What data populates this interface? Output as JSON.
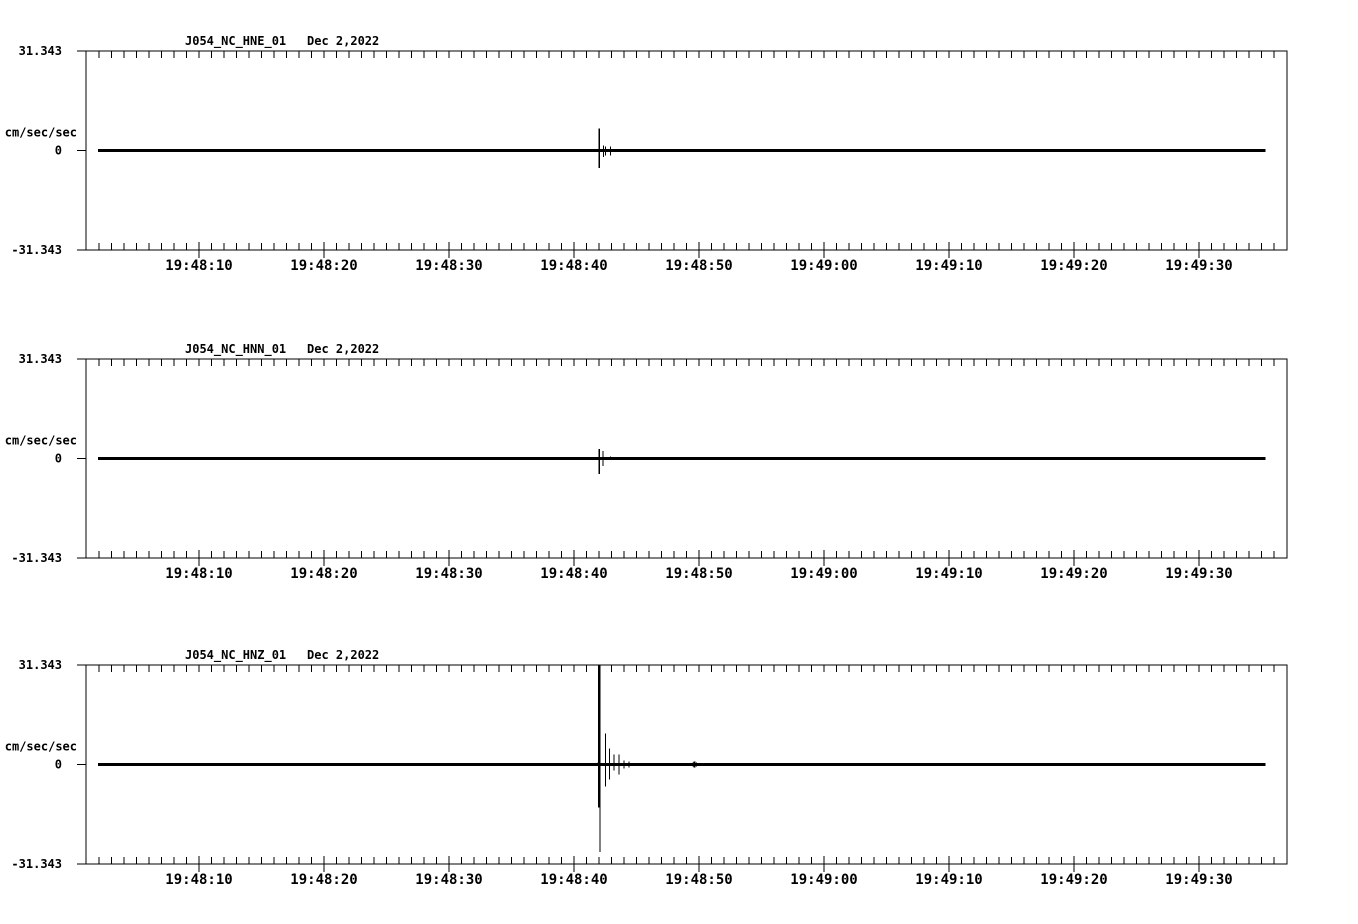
{
  "page": {
    "background_color": "#ffffff",
    "foreground_color": "#000000",
    "description": "Three-channel strong-motion seismogram display"
  },
  "chart_data": [
    {
      "type": "line",
      "title": "J054_NC_HNE_01",
      "date_label": "Dec 2,2022",
      "ylabel": "cm/sec/sec",
      "ylim": [
        -31.343,
        31.343
      ],
      "ytick_labels": [
        "31.343",
        "0",
        "-31.343"
      ],
      "ytick_values": [
        31.343,
        0,
        -31.343
      ],
      "x_time_labels": [
        "19:48:10",
        "19:48:20",
        "19:48:30",
        "19:48:40",
        "19:48:50",
        "19:49:00",
        "19:49:10",
        "19:49:20",
        "19:49:30"
      ],
      "x_major_ticks_s": [
        10,
        20,
        30,
        40,
        50,
        60,
        70,
        80,
        90
      ],
      "x_axis_range_s": [
        0.96,
        97.04
      ],
      "x_minor_tick_interval_s": 1,
      "trace_span_s": [
        1.9,
        95.3
      ],
      "baseline_value": 0,
      "grid": false,
      "legend": "none",
      "spikes": [
        [
          41.95,
          0.3,
          0.3,
          1
        ],
        [
          42.0,
          7.0,
          5.5,
          1.5
        ],
        [
          42.35,
          1.6,
          2.1,
          1
        ],
        [
          42.5,
          1.2,
          1.5,
          1
        ],
        [
          42.9,
          1.3,
          1.6,
          1
        ]
      ]
    },
    {
      "type": "line",
      "title": "J054_NC_HNN_01",
      "date_label": "Dec 2,2022",
      "ylabel": "cm/sec/sec",
      "ylim": [
        -31.343,
        31.343
      ],
      "ytick_labels": [
        "31.343",
        "0",
        "-31.343"
      ],
      "ytick_values": [
        31.343,
        0,
        -31.343
      ],
      "x_time_labels": [
        "19:48:10",
        "19:48:20",
        "19:48:30",
        "19:48:40",
        "19:48:50",
        "19:49:00",
        "19:49:10",
        "19:49:20",
        "19:49:30"
      ],
      "x_major_ticks_s": [
        10,
        20,
        30,
        40,
        50,
        60,
        70,
        80,
        90
      ],
      "x_axis_range_s": [
        0.96,
        97.04
      ],
      "x_minor_tick_interval_s": 1,
      "trace_span_s": [
        1.9,
        95.3
      ],
      "baseline_value": 0,
      "grid": false,
      "legend": "none",
      "spikes": [
        [
          42.0,
          3.0,
          4.9,
          1.5
        ],
        [
          42.3,
          2.4,
          2.3,
          1
        ],
        [
          42.9,
          0.7,
          0.5,
          1
        ],
        [
          72.3,
          0.4,
          0.2,
          1
        ]
      ]
    },
    {
      "type": "line",
      "title": "J054_NC_HNZ_01",
      "date_label": "Dec 2,2022",
      "ylabel": "cm/sec/sec",
      "ylim": [
        -31.343,
        31.343
      ],
      "ytick_labels": [
        "31.343",
        "0",
        "-31.343"
      ],
      "ytick_values": [
        31.343,
        0,
        -31.343
      ],
      "x_time_labels": [
        "19:48:10",
        "19:48:20",
        "19:48:30",
        "19:48:40",
        "19:48:50",
        "19:49:00",
        "19:49:10",
        "19:49:20",
        "19:49:30"
      ],
      "x_major_ticks_s": [
        10,
        20,
        30,
        40,
        50,
        60,
        70,
        80,
        90
      ],
      "x_axis_range_s": [
        0.96,
        97.04
      ],
      "x_minor_tick_interval_s": 1,
      "trace_span_s": [
        1.9,
        95.3
      ],
      "baseline_value": 0,
      "grid": false,
      "legend": "none",
      "spikes": [
        [
          6.5,
          0.3,
          0.3,
          1
        ],
        [
          7.7,
          0.3,
          0.3,
          1
        ],
        [
          11.0,
          0.3,
          0.3,
          1
        ],
        [
          12.3,
          0.4,
          0.4,
          1
        ],
        [
          18.9,
          0.3,
          0.3,
          1
        ],
        [
          20.5,
          0.3,
          0.3,
          1
        ],
        [
          25.7,
          0.3,
          0.3,
          1
        ],
        [
          27.0,
          0.3,
          0.3,
          1
        ],
        [
          29.3,
          0.4,
          0.4,
          1
        ],
        [
          31.0,
          0.3,
          0.3,
          1
        ],
        [
          33.4,
          0.3,
          0.3,
          1
        ],
        [
          35.0,
          0.3,
          0.3,
          1
        ],
        [
          37.3,
          0.3,
          0.3,
          1
        ],
        [
          41.9,
          0.6,
          0.5,
          1
        ],
        [
          42.0,
          31.343,
          13.6,
          2.5
        ],
        [
          42.06,
          0,
          27.6,
          1
        ],
        [
          42.5,
          9.8,
          6.9,
          1
        ],
        [
          42.85,
          5.0,
          4.7,
          1
        ],
        [
          43.2,
          3.1,
          1.9,
          1
        ],
        [
          43.6,
          3.1,
          3.1,
          1
        ],
        [
          44.0,
          1.3,
          1.3,
          1
        ],
        [
          44.4,
          0.9,
          0.9,
          1
        ],
        [
          45.3,
          0.5,
          0.5,
          1
        ],
        [
          46.5,
          0.4,
          0.4,
          1
        ],
        [
          49.5,
          0.6,
          0.6,
          1
        ],
        [
          49.65,
          0.9,
          0.9,
          2
        ],
        [
          49.8,
          0.6,
          0.6,
          1
        ],
        [
          51.7,
          0.4,
          0.4,
          1
        ],
        [
          53.4,
          0.4,
          0.4,
          1
        ],
        [
          53.8,
          0.3,
          0.3,
          1
        ],
        [
          63.3,
          0.4,
          0.3,
          1
        ],
        [
          64.6,
          0.3,
          0.3,
          1
        ],
        [
          66.1,
          0.3,
          0.4,
          1
        ],
        [
          68.3,
          0.4,
          0.3,
          1
        ],
        [
          72.5,
          0.4,
          0.4,
          1
        ],
        [
          72.9,
          0.3,
          0.4,
          1
        ],
        [
          73.3,
          0.4,
          0.3,
          1
        ],
        [
          75.5,
          0.5,
          0.4,
          1
        ],
        [
          76.0,
          0.4,
          0.5,
          1
        ],
        [
          76.6,
          0.5,
          0.4,
          1
        ],
        [
          77.0,
          0.4,
          0.4,
          1
        ],
        [
          77.8,
          0.4,
          0.4,
          1
        ],
        [
          78.7,
          0.3,
          0.4,
          1
        ],
        [
          82.6,
          0.4,
          0.4,
          1
        ],
        [
          83.0,
          0.4,
          0.3,
          1
        ],
        [
          85.2,
          0.5,
          0.4,
          1
        ],
        [
          85.5,
          0.4,
          0.4,
          1
        ],
        [
          86.2,
          0.4,
          0.5,
          1
        ],
        [
          86.6,
          0.5,
          0.4,
          1
        ],
        [
          87.0,
          0.4,
          0.4,
          1
        ],
        [
          87.7,
          0.4,
          0.3,
          1
        ],
        [
          89.8,
          0.5,
          0.4,
          1
        ],
        [
          90.2,
          0.4,
          0.5,
          1
        ],
        [
          90.9,
          0.4,
          0.3,
          1
        ],
        [
          92.6,
          0.5,
          0.4,
          1
        ],
        [
          93.0,
          0.4,
          0.4,
          1
        ],
        [
          93.8,
          0.4,
          0.3,
          1
        ],
        [
          94.5,
          0.3,
          0.3,
          1
        ]
      ]
    }
  ]
}
